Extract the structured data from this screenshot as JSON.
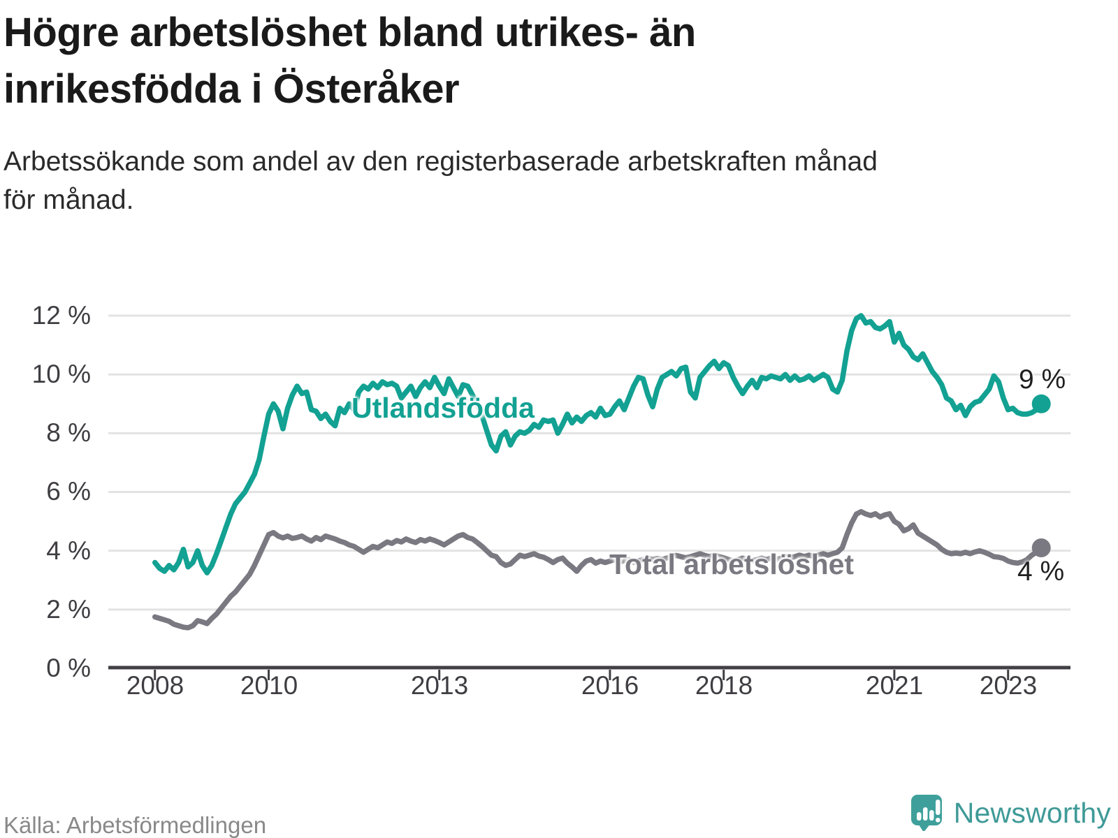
{
  "title": {
    "line1": "Högre arbetslöshet bland utrikes- än",
    "line2": "inrikesfödda i Österåker"
  },
  "subtitle": {
    "line1": "Arbetssökande som andel av den registerbaserade arbetskraften månad",
    "line2": "för månad."
  },
  "source": "Källa: Arbetsförmedlingen",
  "logo": {
    "text": "Newsworthy"
  },
  "colors": {
    "teal": "#12a192",
    "gray": "#7a7981",
    "axis": "#413f44",
    "grid": "#e3e3e3"
  },
  "chart_data": {
    "type": "line",
    "title": "Arbetssökande som andel av den registerbaserade arbetskraften månad för månad",
    "xlabel": "",
    "ylabel": "",
    "ylim": [
      0,
      12
    ],
    "grid": "horizontal",
    "x_start": "2008-01",
    "x_end": "2023-08",
    "x_ticks": [
      {
        "year": 2008,
        "label": "2008"
      },
      {
        "year": 2010,
        "label": "2010"
      },
      {
        "year": 2013,
        "label": "2013"
      },
      {
        "year": 2016,
        "label": "2016"
      },
      {
        "year": 2018,
        "label": "2018"
      },
      {
        "year": 2021,
        "label": "2021"
      },
      {
        "year": 2023,
        "label": "2023"
      }
    ],
    "y_ticks": [
      {
        "value": 0,
        "label": "0 %"
      },
      {
        "value": 2,
        "label": "2 %"
      },
      {
        "value": 4,
        "label": "4 %"
      },
      {
        "value": 6,
        "label": "6 %"
      },
      {
        "value": 8,
        "label": "8 %"
      },
      {
        "value": 10,
        "label": "10 %"
      },
      {
        "value": 12,
        "label": "12 %"
      }
    ],
    "series": [
      {
        "name": "Utlandsfödda",
        "color": "#12a192",
        "end_label": "9 %",
        "values": [
          3.6,
          3.4,
          3.3,
          3.5,
          3.35,
          3.6,
          4.05,
          3.45,
          3.6,
          4.0,
          3.5,
          3.25,
          3.5,
          3.9,
          4.35,
          4.8,
          5.25,
          5.6,
          5.8,
          6.0,
          6.3,
          6.6,
          7.1,
          7.9,
          8.65,
          9.0,
          8.75,
          8.15,
          8.85,
          9.3,
          9.6,
          9.35,
          9.4,
          8.8,
          8.75,
          8.5,
          8.65,
          8.4,
          8.25,
          8.85,
          8.7,
          9.0,
          8.8,
          9.4,
          9.6,
          9.5,
          9.7,
          9.55,
          9.75,
          9.65,
          9.7,
          9.6,
          9.2,
          9.4,
          9.6,
          9.25,
          9.55,
          9.75,
          9.55,
          9.9,
          9.6,
          9.35,
          9.85,
          9.55,
          9.25,
          9.65,
          9.6,
          9.3,
          9.0,
          8.6,
          8.1,
          7.6,
          7.4,
          7.9,
          8.05,
          7.6,
          7.9,
          8.05,
          8.0,
          8.1,
          8.3,
          8.2,
          8.45,
          8.4,
          8.45,
          8.0,
          8.3,
          8.65,
          8.35,
          8.55,
          8.4,
          8.6,
          8.7,
          8.55,
          8.85,
          8.6,
          8.65,
          8.9,
          9.1,
          8.8,
          9.2,
          9.6,
          9.9,
          9.85,
          9.3,
          8.9,
          9.5,
          9.9,
          10.0,
          10.1,
          9.95,
          10.2,
          10.25,
          9.4,
          9.2,
          9.9,
          10.1,
          10.3,
          10.45,
          10.2,
          10.4,
          10.3,
          9.9,
          9.6,
          9.35,
          9.6,
          9.8,
          9.55,
          9.9,
          9.85,
          9.95,
          9.9,
          9.85,
          10.0,
          9.8,
          9.95,
          9.8,
          9.85,
          9.95,
          9.8,
          9.9,
          10.0,
          9.9,
          9.5,
          9.4,
          9.8,
          10.8,
          11.5,
          11.9,
          12.0,
          11.75,
          11.8,
          11.6,
          11.55,
          11.65,
          11.8,
          11.1,
          11.4,
          11.0,
          10.85,
          10.6,
          10.5,
          10.7,
          10.4,
          10.1,
          9.9,
          9.65,
          9.2,
          9.1,
          8.8,
          8.95,
          8.6,
          8.9,
          9.05,
          9.1,
          9.3,
          9.5,
          9.95,
          9.75,
          9.2,
          8.8,
          8.85,
          8.7,
          8.65,
          8.65,
          8.7,
          8.8,
          9.0
        ]
      },
      {
        "name": "Total arbetslöshet",
        "color": "#7a7981",
        "end_label": "4 %",
        "values": [
          1.75,
          1.7,
          1.65,
          1.6,
          1.5,
          1.45,
          1.4,
          1.38,
          1.45,
          1.62,
          1.58,
          1.52,
          1.7,
          1.85,
          2.05,
          2.25,
          2.45,
          2.6,
          2.8,
          3.0,
          3.2,
          3.5,
          3.85,
          4.2,
          4.55,
          4.62,
          4.5,
          4.44,
          4.5,
          4.42,
          4.45,
          4.5,
          4.4,
          4.33,
          4.45,
          4.38,
          4.5,
          4.45,
          4.4,
          4.33,
          4.28,
          4.2,
          4.15,
          4.05,
          3.95,
          4.05,
          4.15,
          4.1,
          4.2,
          4.3,
          4.25,
          4.35,
          4.3,
          4.4,
          4.33,
          4.28,
          4.38,
          4.33,
          4.4,
          4.35,
          4.28,
          4.2,
          4.3,
          4.4,
          4.5,
          4.55,
          4.45,
          4.4,
          4.28,
          4.15,
          4.0,
          3.85,
          3.8,
          3.6,
          3.5,
          3.55,
          3.7,
          3.85,
          3.8,
          3.85,
          3.9,
          3.82,
          3.78,
          3.7,
          3.6,
          3.7,
          3.75,
          3.58,
          3.45,
          3.3,
          3.5,
          3.65,
          3.7,
          3.58,
          3.65,
          3.6,
          3.65,
          3.7,
          3.62,
          3.66,
          3.7,
          3.6,
          3.66,
          3.7,
          3.74,
          3.7,
          3.74,
          3.7,
          3.75,
          3.8,
          3.84,
          3.8,
          3.76,
          3.8,
          3.85,
          3.9,
          3.84,
          3.8,
          3.85,
          3.8,
          3.76,
          3.7,
          3.66,
          3.7,
          3.75,
          3.7,
          3.66,
          3.7,
          3.75,
          3.7,
          3.75,
          3.7,
          3.74,
          3.8,
          3.76,
          3.8,
          3.85,
          3.8,
          3.85,
          3.8,
          3.85,
          3.9,
          3.85,
          3.9,
          3.95,
          4.1,
          4.55,
          4.95,
          5.25,
          5.33,
          5.25,
          5.2,
          5.26,
          5.15,
          5.22,
          5.26,
          5.0,
          4.9,
          4.68,
          4.75,
          4.88,
          4.6,
          4.5,
          4.4,
          4.3,
          4.2,
          4.05,
          3.95,
          3.9,
          3.92,
          3.9,
          3.95,
          3.9,
          3.96,
          4.0,
          3.95,
          3.88,
          3.8,
          3.78,
          3.74,
          3.65,
          3.6,
          3.58,
          3.62,
          3.7,
          3.85,
          3.95,
          4.1
        ]
      }
    ]
  }
}
